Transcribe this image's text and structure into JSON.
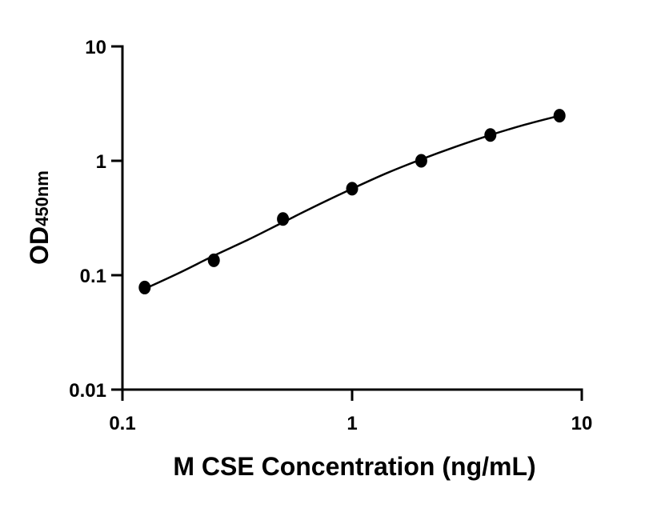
{
  "chart_data": {
    "type": "scatter",
    "xlabel": "M CSE Concentration (ng/mL)",
    "ylabel_main": "OD",
    "ylabel_sub": "450nm",
    "x_scale": "log",
    "y_scale": "log",
    "xlim": [
      0.1,
      10
    ],
    "ylim": [
      0.01,
      10
    ],
    "x_ticks": [
      {
        "value": 0.1,
        "label": "0.1"
      },
      {
        "value": 1,
        "label": "1"
      },
      {
        "value": 10,
        "label": "10"
      }
    ],
    "y_ticks": [
      {
        "value": 0.01,
        "label": "0.01"
      },
      {
        "value": 0.1,
        "label": "0.1"
      },
      {
        "value": 1,
        "label": "1"
      },
      {
        "value": 10,
        "label": "10"
      }
    ],
    "grid": false,
    "series": [
      {
        "type": "scatter",
        "color": "#000000",
        "points": [
          {
            "x": 0.125,
            "y": 0.078
          },
          {
            "x": 0.25,
            "y": 0.135
          },
          {
            "x": 0.5,
            "y": 0.31
          },
          {
            "x": 1,
            "y": 0.57
          },
          {
            "x": 2,
            "y": 1.0
          },
          {
            "x": 4,
            "y": 1.68
          },
          {
            "x": 8,
            "y": 2.48
          }
        ]
      },
      {
        "type": "line",
        "color": "#000000",
        "points": [
          {
            "x": 0.125,
            "y": 0.076
          },
          {
            "x": 0.177,
            "y": 0.105
          },
          {
            "x": 0.25,
            "y": 0.148
          },
          {
            "x": 0.354,
            "y": 0.205
          },
          {
            "x": 0.5,
            "y": 0.29
          },
          {
            "x": 0.707,
            "y": 0.41
          },
          {
            "x": 1,
            "y": 0.57
          },
          {
            "x": 1.414,
            "y": 0.78
          },
          {
            "x": 2,
            "y": 1.03
          },
          {
            "x": 2.83,
            "y": 1.33
          },
          {
            "x": 4,
            "y": 1.68
          },
          {
            "x": 5.66,
            "y": 2.07
          },
          {
            "x": 8,
            "y": 2.48
          }
        ]
      }
    ]
  }
}
